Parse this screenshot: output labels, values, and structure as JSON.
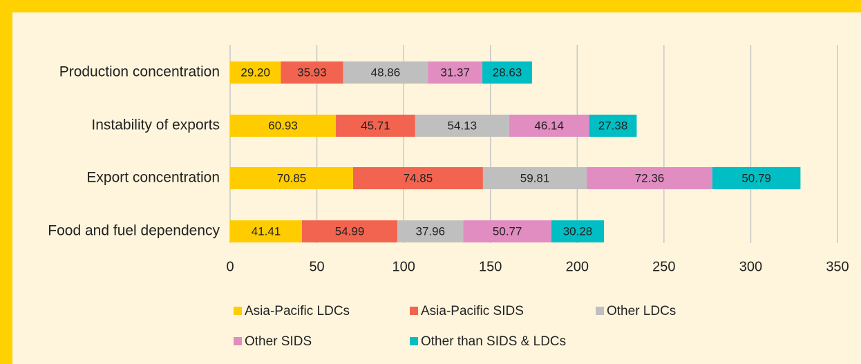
{
  "chart_data": {
    "type": "stacked-bar-horizontal",
    "categories": [
      "Production concentration",
      "Instability of exports",
      "Export concentration",
      "Food and fuel dependency"
    ],
    "series": [
      {
        "name": "Asia-Pacific LDCs",
        "color": "#ffcc00",
        "values": [
          29.2,
          60.93,
          70.85,
          41.41
        ],
        "value_labels": [
          "29.20",
          "60.93",
          "70.85",
          "41.41"
        ]
      },
      {
        "name": "Asia-Pacific SIDS",
        "color": "#f2644f",
        "values": [
          35.93,
          45.71,
          74.85,
          54.99
        ],
        "value_labels": [
          "35.93",
          "45.71",
          "74.85",
          "54.99"
        ]
      },
      {
        "name": "Other LDCs",
        "color": "#bfbfbf",
        "values": [
          48.86,
          54.13,
          59.81,
          37.96
        ],
        "value_labels": [
          "48.86",
          "54.13",
          "59.81",
          "37.96"
        ]
      },
      {
        "name": "Other SIDS",
        "color": "#e18dc1",
        "values": [
          31.37,
          46.14,
          72.36,
          50.77
        ],
        "value_labels": [
          "31.37",
          "46.14",
          "72.36",
          "50.77"
        ]
      },
      {
        "name": "Other than SIDS & LDCs",
        "color": "#00bec3",
        "values": [
          28.63,
          27.38,
          50.79,
          30.28
        ],
        "value_labels": [
          "28.63",
          "27.38",
          "50.79",
          "30.28"
        ]
      }
    ],
    "xlim": [
      0,
      350
    ],
    "xticks": [
      0,
      50,
      100,
      150,
      200,
      250,
      300,
      350
    ],
    "grid": true
  }
}
